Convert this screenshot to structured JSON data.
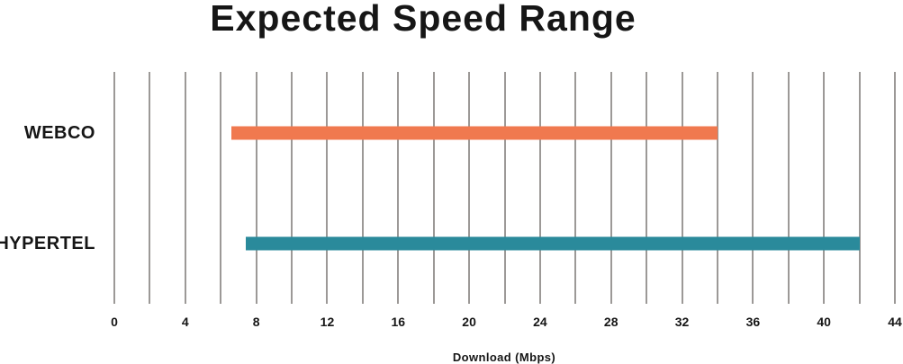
{
  "chart_data": {
    "type": "bar",
    "subtype": "horizontal-range",
    "title": "Expected Speed Range",
    "xlabel": "Download (Mbps)",
    "categories": [
      "WEBCO",
      "HYPERTEL"
    ],
    "series": [
      {
        "name": "WEBCO",
        "range_mbps": [
          6.6,
          34
        ],
        "color": "#f0794f"
      },
      {
        "name": "HYPERTEL",
        "range_mbps": [
          7.4,
          42
        ],
        "color": "#2a8a9b"
      }
    ],
    "xlim": [
      0,
      44
    ],
    "tick_labels": [
      "0",
      "4",
      "8",
      "12",
      "16",
      "20",
      "24",
      "28",
      "32",
      "36",
      "40",
      "44"
    ],
    "gridline_step": 2,
    "grid": true,
    "legend": false,
    "gridline_color": "#9c9997",
    "text_color": "#161616",
    "layout": {
      "row_centers_frac": [
        0.264,
        0.74
      ]
    }
  }
}
